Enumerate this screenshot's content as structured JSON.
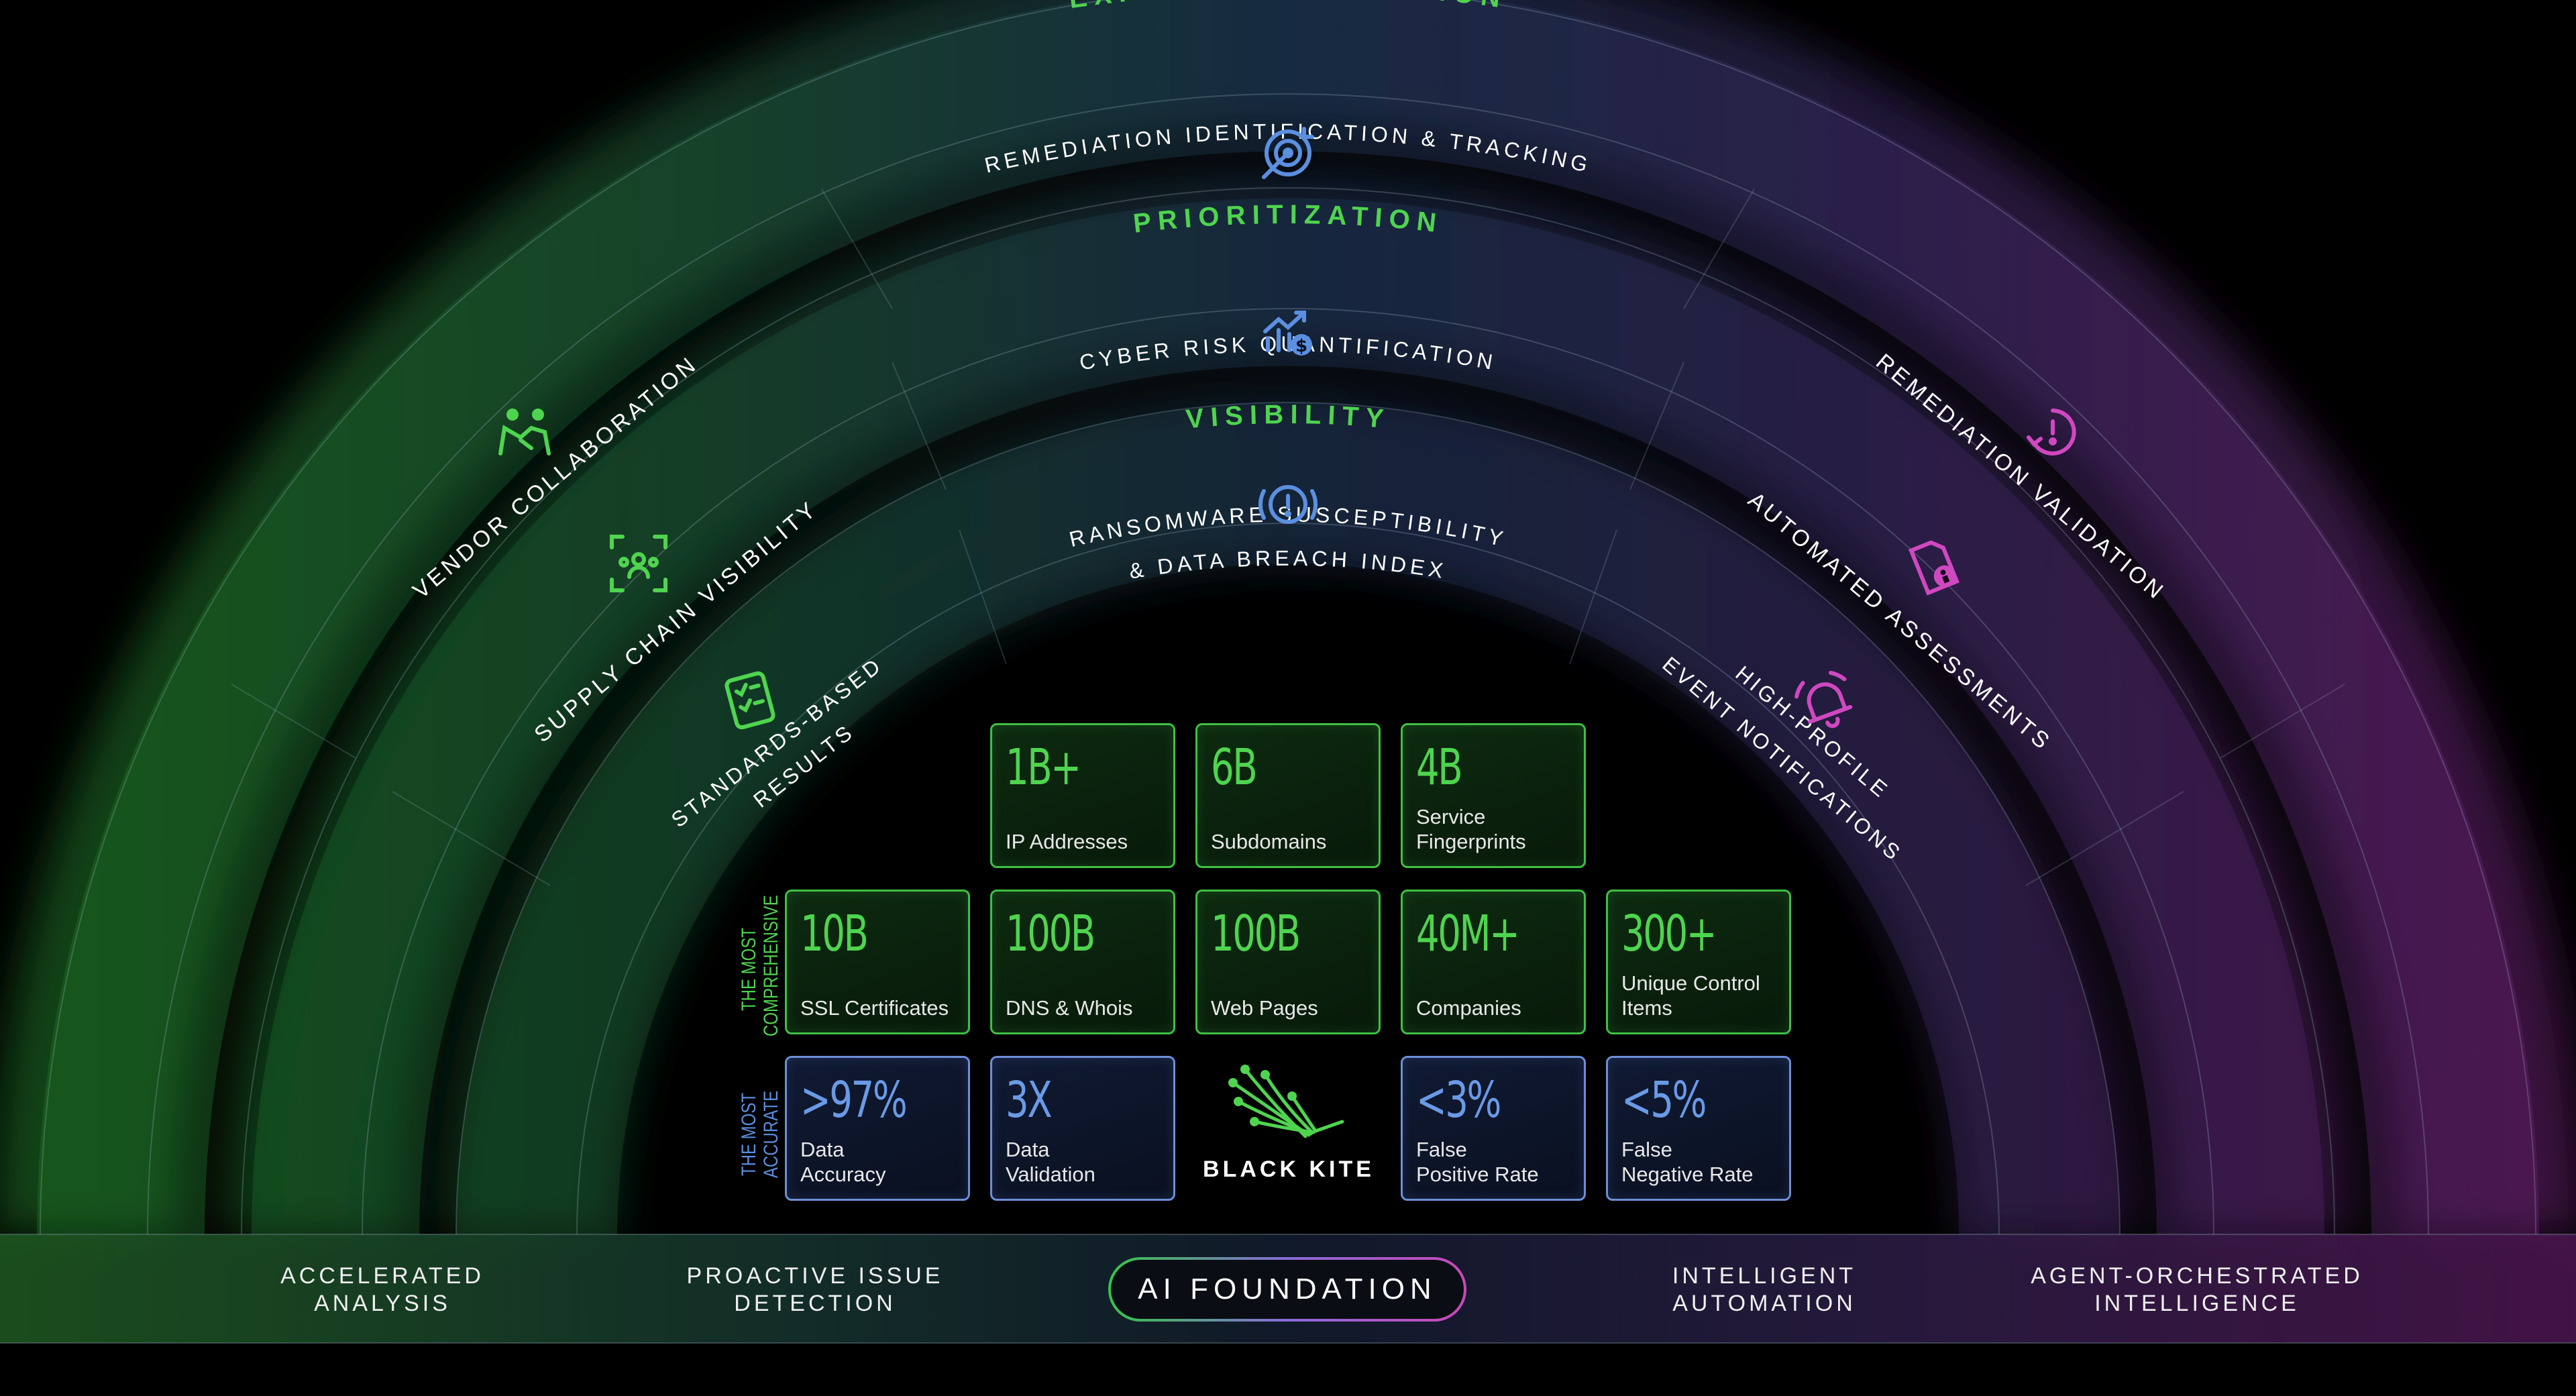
{
  "rings": {
    "exposure": {
      "title": "EXPOSURE REDUCTION",
      "center": "REMEDIATION IDENTIFICATION & TRACKING",
      "left": "VENDOR COLLABORATION",
      "right": "REMEDIATION VALIDATION"
    },
    "prioritization": {
      "title": "PRIORITIZATION",
      "center": "CYBER RISK QUANTIFICATION",
      "left": "SUPPLY CHAIN VISIBILITY",
      "right": "AUTOMATED ASSESSMENTS"
    },
    "visibility": {
      "title": "VISIBILITY",
      "center_line1": "RANSOMWARE SUSCEPTIBILITY",
      "center_line2": "& DATA BREACH INDEX",
      "left_line1": "STANDARDS-BASED",
      "left_line2": "RESULTS",
      "right_line1": "HIGH-PROFILE",
      "right_line2": "EVENT NOTIFICATIONS"
    }
  },
  "side_labels": {
    "comprehensive": "THE MOST\nCOMPREHENSIVE",
    "accurate": "THE MOST\nACCURATE"
  },
  "stats": {
    "row1": [
      {
        "value": "1B+",
        "label": "IP Addresses"
      },
      {
        "value": "6B",
        "label": "Subdomains"
      },
      {
        "value": "4B",
        "label": "Service\nFingerprints"
      }
    ],
    "row2": [
      {
        "value": "10B",
        "label": "SSL Certificates"
      },
      {
        "value": "100B",
        "label": "DNS & Whois"
      },
      {
        "value": "100B",
        "label": "Web Pages"
      },
      {
        "value": "40M+",
        "label": "Companies"
      },
      {
        "value": "300+",
        "label": "Unique Control\nItems"
      }
    ],
    "row3": [
      {
        "value": ">97%",
        "label": "Data\nAccuracy"
      },
      {
        "value": "3X",
        "label": "Data\nValidation"
      },
      {
        "value": "<3%",
        "label": "False\nPositive Rate"
      },
      {
        "value": "<5%",
        "label": "False\nNegative Rate"
      }
    ]
  },
  "brand": {
    "name": "BLACK KITE"
  },
  "footer": {
    "items": [
      {
        "label": "ACCELERATED\nANALYSIS"
      },
      {
        "label": "PROACTIVE ISSUE\nDETECTION"
      },
      {
        "label": "INTELLIGENT\nAUTOMATION"
      },
      {
        "label": "AGENT-ORCHESTRATED\nINTELLIGENCE"
      }
    ],
    "center_button": "AI FOUNDATION"
  },
  "colors": {
    "green": "#4fd44f",
    "blue": "#5b8fe0",
    "magenta": "#d048c0",
    "white": "#ffffff"
  },
  "icons": [
    "target-icon",
    "chart-dollar-icon",
    "alert-circle-icon",
    "handshake-icon",
    "network-scan-icon",
    "checklist-icon",
    "clock-alert-icon",
    "document-person-icon",
    "bell-icon",
    "kite-logo-icon"
  ]
}
